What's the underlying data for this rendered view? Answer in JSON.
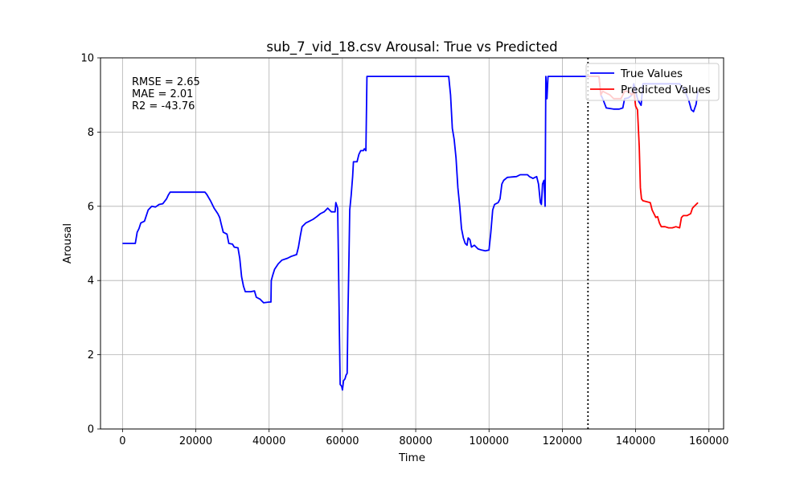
{
  "chart_data": {
    "type": "line",
    "title": "sub_7_vid_18.csv Arousal: True vs Predicted",
    "xlabel": "Time",
    "ylabel": "Arousal",
    "xlim": [
      -6000,
      164000
    ],
    "ylim": [
      0,
      10
    ],
    "xticks": [
      0,
      20000,
      40000,
      60000,
      80000,
      100000,
      120000,
      140000,
      160000
    ],
    "yticks": [
      0,
      2,
      4,
      6,
      8,
      10
    ],
    "grid": true,
    "legend": "top-right",
    "split_x": 127000,
    "metrics": [
      "RMSE = 2.65",
      "MAE = 2.01",
      "R2 = -43.76"
    ],
    "series": [
      {
        "name": "True Values",
        "color": "#0000ff",
        "points": [
          [
            0,
            5.0
          ],
          [
            3500,
            5.0
          ],
          [
            4000,
            5.3
          ],
          [
            4500,
            5.4
          ],
          [
            5000,
            5.55
          ],
          [
            6000,
            5.6
          ],
          [
            7000,
            5.9
          ],
          [
            8000,
            6.0
          ],
          [
            9000,
            5.98
          ],
          [
            10000,
            6.05
          ],
          [
            11000,
            6.07
          ],
          [
            12000,
            6.2
          ],
          [
            12500,
            6.3
          ],
          [
            13000,
            6.38
          ],
          [
            16000,
            6.38
          ],
          [
            20000,
            6.38
          ],
          [
            22500,
            6.38
          ],
          [
            23000,
            6.32
          ],
          [
            24000,
            6.15
          ],
          [
            25000,
            5.95
          ],
          [
            26000,
            5.8
          ],
          [
            26500,
            5.7
          ],
          [
            27000,
            5.5
          ],
          [
            27500,
            5.3
          ],
          [
            28500,
            5.25
          ],
          [
            29000,
            5.0
          ],
          [
            30000,
            4.98
          ],
          [
            30500,
            4.9
          ],
          [
            31500,
            4.88
          ],
          [
            32000,
            4.6
          ],
          [
            32500,
            4.1
          ],
          [
            33000,
            3.85
          ],
          [
            33500,
            3.7
          ],
          [
            35000,
            3.7
          ],
          [
            36000,
            3.72
          ],
          [
            36500,
            3.55
          ],
          [
            37500,
            3.5
          ],
          [
            38000,
            3.45
          ],
          [
            38500,
            3.4
          ],
          [
            40000,
            3.42
          ],
          [
            40500,
            3.42
          ],
          [
            40600,
            4.0
          ],
          [
            41000,
            4.15
          ],
          [
            41500,
            4.3
          ],
          [
            42500,
            4.45
          ],
          [
            43500,
            4.55
          ],
          [
            45000,
            4.6
          ],
          [
            46000,
            4.65
          ],
          [
            47500,
            4.7
          ],
          [
            48000,
            4.9
          ],
          [
            48500,
            5.2
          ],
          [
            49000,
            5.45
          ],
          [
            50000,
            5.55
          ],
          [
            51000,
            5.6
          ],
          [
            52000,
            5.65
          ],
          [
            53000,
            5.72
          ],
          [
            54000,
            5.8
          ],
          [
            55000,
            5.85
          ],
          [
            56000,
            5.95
          ],
          [
            57000,
            5.85
          ],
          [
            58000,
            5.85
          ],
          [
            58200,
            6.1
          ],
          [
            58700,
            5.95
          ],
          [
            59000,
            4.0
          ],
          [
            59200,
            2.5
          ],
          [
            59400,
            1.2
          ],
          [
            59800,
            1.15
          ],
          [
            60000,
            1.05
          ],
          [
            60300,
            1.3
          ],
          [
            60700,
            1.35
          ],
          [
            61000,
            1.45
          ],
          [
            61300,
            1.5
          ],
          [
            61500,
            3.0
          ],
          [
            61800,
            4.7
          ],
          [
            62000,
            5.9
          ],
          [
            62400,
            6.3
          ],
          [
            62800,
            6.8
          ],
          [
            63000,
            7.2
          ],
          [
            64000,
            7.2
          ],
          [
            64500,
            7.4
          ],
          [
            65000,
            7.5
          ],
          [
            65700,
            7.5
          ],
          [
            66000,
            7.55
          ],
          [
            66400,
            7.5
          ],
          [
            66700,
            9.5
          ],
          [
            67000,
            9.5
          ],
          [
            80000,
            9.5
          ],
          [
            89000,
            9.5
          ],
          [
            89500,
            9.0
          ],
          [
            90000,
            8.1
          ],
          [
            90500,
            7.8
          ],
          [
            91000,
            7.3
          ],
          [
            91500,
            6.5
          ],
          [
            92000,
            6.0
          ],
          [
            92500,
            5.4
          ],
          [
            93000,
            5.15
          ],
          [
            93500,
            5.0
          ],
          [
            94000,
            4.95
          ],
          [
            94300,
            5.15
          ],
          [
            94800,
            5.1
          ],
          [
            95200,
            4.9
          ],
          [
            96000,
            4.95
          ],
          [
            97000,
            4.85
          ],
          [
            98000,
            4.82
          ],
          [
            99000,
            4.8
          ],
          [
            100000,
            4.82
          ],
          [
            100500,
            5.3
          ],
          [
            101000,
            5.9
          ],
          [
            101500,
            6.05
          ],
          [
            102500,
            6.1
          ],
          [
            103000,
            6.2
          ],
          [
            103500,
            6.6
          ],
          [
            104000,
            6.7
          ],
          [
            105000,
            6.78
          ],
          [
            107500,
            6.8
          ],
          [
            108500,
            6.85
          ],
          [
            110500,
            6.85
          ],
          [
            111000,
            6.8
          ],
          [
            112000,
            6.75
          ],
          [
            113000,
            6.8
          ],
          [
            113500,
            6.6
          ],
          [
            114000,
            6.1
          ],
          [
            114300,
            6.05
          ],
          [
            114600,
            6.6
          ],
          [
            115000,
            6.7
          ],
          [
            115300,
            6.0
          ],
          [
            115500,
            9.5
          ],
          [
            115800,
            8.9
          ],
          [
            116100,
            9.5
          ],
          [
            120000,
            9.5
          ],
          [
            126000,
            9.5
          ],
          [
            130000,
            9.5
          ],
          [
            130500,
            9.0
          ],
          [
            131000,
            8.9
          ],
          [
            132000,
            8.65
          ],
          [
            134000,
            8.62
          ],
          [
            135500,
            8.62
          ],
          [
            136500,
            8.65
          ],
          [
            137000,
            8.9
          ],
          [
            138000,
            8.92
          ],
          [
            139000,
            9.0
          ],
          [
            139500,
            9.3
          ],
          [
            140000,
            9.1
          ],
          [
            140500,
            8.9
          ],
          [
            141000,
            8.8
          ],
          [
            141500,
            8.72
          ],
          [
            142000,
            9.3
          ],
          [
            143000,
            9.3
          ],
          [
            146000,
            9.3
          ],
          [
            150000,
            9.3
          ],
          [
            152000,
            9.3
          ],
          [
            153500,
            9.1
          ],
          [
            154500,
            8.85
          ],
          [
            155200,
            8.6
          ],
          [
            155800,
            8.55
          ],
          [
            156500,
            8.75
          ],
          [
            157000,
            9.1
          ]
        ]
      },
      {
        "name": "Predicted Values",
        "color": "#ff0000",
        "points": [
          [
            127000,
            9.5
          ],
          [
            130000,
            9.5
          ],
          [
            130500,
            9.0
          ],
          [
            131000,
            9.1
          ],
          [
            132000,
            9.05
          ],
          [
            133000,
            9.0
          ],
          [
            134000,
            8.9
          ],
          [
            136000,
            8.9
          ],
          [
            137000,
            9.1
          ],
          [
            138000,
            9.1
          ],
          [
            139000,
            9.0
          ],
          [
            139500,
            9.1
          ],
          [
            140000,
            8.7
          ],
          [
            140500,
            8.6
          ],
          [
            141000,
            7.6
          ],
          [
            141300,
            6.5
          ],
          [
            141600,
            6.2
          ],
          [
            142000,
            6.15
          ],
          [
            144000,
            6.1
          ],
          [
            144500,
            5.9
          ],
          [
            145000,
            5.8
          ],
          [
            145500,
            5.7
          ],
          [
            146000,
            5.72
          ],
          [
            146500,
            5.55
          ],
          [
            147000,
            5.45
          ],
          [
            148000,
            5.45
          ],
          [
            149000,
            5.42
          ],
          [
            150000,
            5.42
          ],
          [
            151000,
            5.45
          ],
          [
            152000,
            5.42
          ],
          [
            152500,
            5.7
          ],
          [
            153000,
            5.75
          ],
          [
            154000,
            5.75
          ],
          [
            155000,
            5.8
          ],
          [
            155500,
            5.95
          ],
          [
            156000,
            6.0
          ],
          [
            157000,
            6.1
          ]
        ]
      }
    ]
  }
}
